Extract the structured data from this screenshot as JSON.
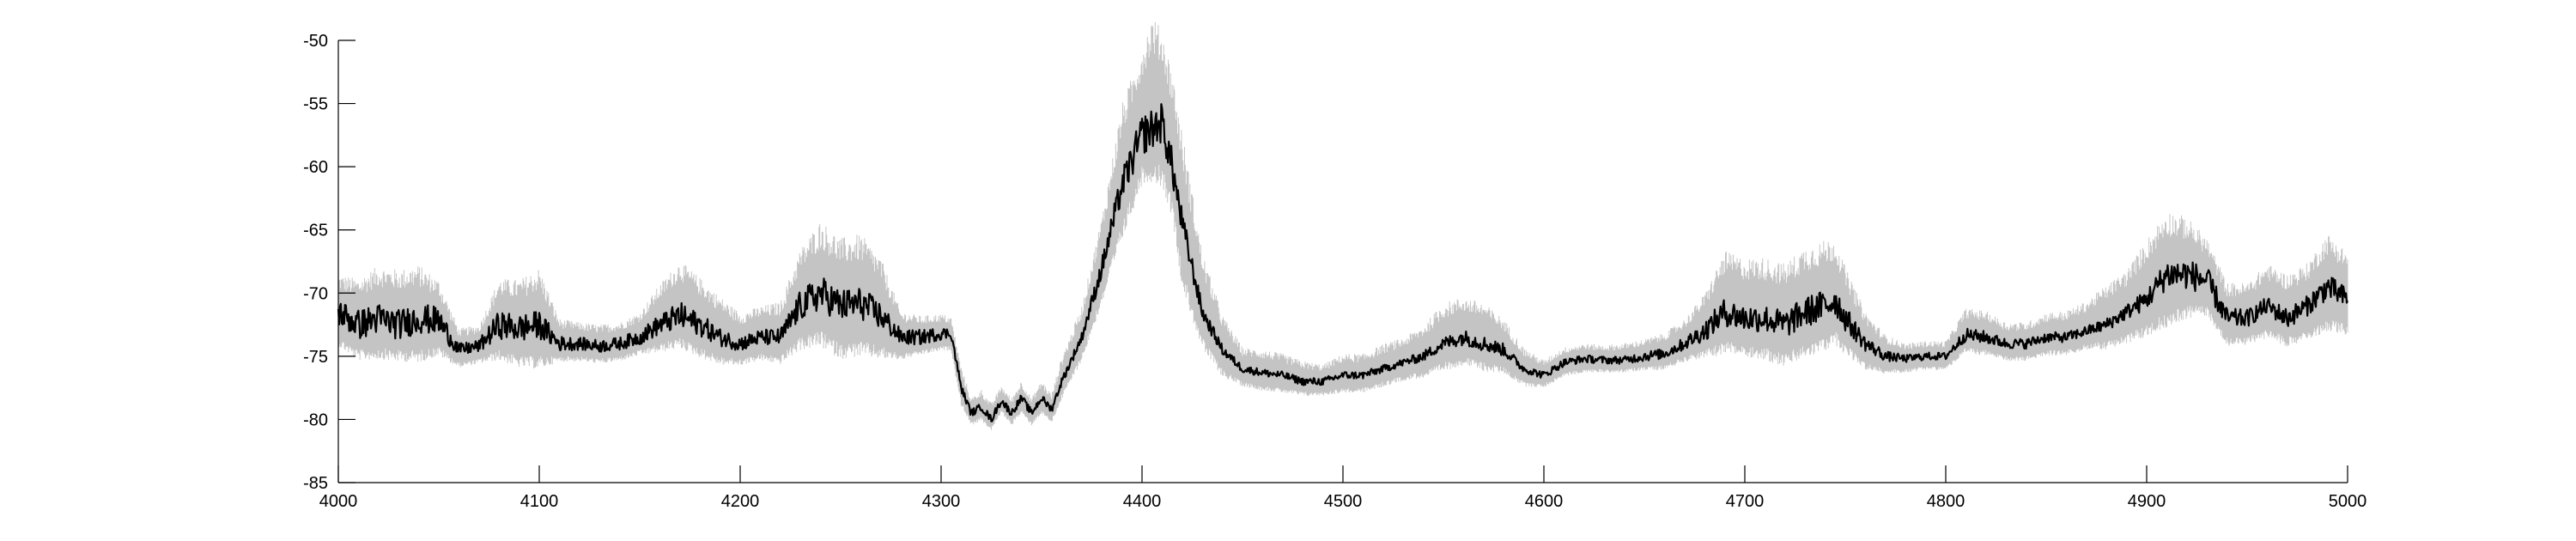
{
  "chart_data": {
    "type": "line",
    "title": "",
    "xlabel": "",
    "ylabel": "",
    "xlim": [
      4000,
      5000
    ],
    "ylim": [
      -85,
      -50
    ],
    "xticks": [
      "4000",
      "4100",
      "4200",
      "4300",
      "4400",
      "4500",
      "4600",
      "4700",
      "4800",
      "4900",
      "5000"
    ],
    "yticks": [
      "-50",
      "-55",
      "-60",
      "-65",
      "-70",
      "-75",
      "-80",
      "-85"
    ],
    "grid": false,
    "legend": "none",
    "colors": {
      "mean_line": "#000000",
      "band": "#c4c4c4",
      "axis": "#000000"
    },
    "series": [
      {
        "role": "mean",
        "x": [
          4000,
          4010,
          4020,
          4030,
          4040,
          4050,
          4060,
          4070,
          4080,
          4090,
          4100,
          4110,
          4120,
          4130,
          4140,
          4150,
          4160,
          4170,
          4180,
          4190,
          4200,
          4210,
          4220,
          4230,
          4240,
          4250,
          4260,
          4270,
          4280,
          4290,
          4300,
          4305,
          4310,
          4315,
          4320,
          4325,
          4330,
          4335,
          4340,
          4345,
          4350,
          4355,
          4360,
          4370,
          4380,
          4390,
          4400,
          4405,
          4410,
          4415,
          4420,
          4430,
          4440,
          4450,
          4460,
          4470,
          4480,
          4490,
          4500,
          4510,
          4520,
          4530,
          4540,
          4550,
          4560,
          4570,
          4580,
          4590,
          4600,
          4610,
          4620,
          4630,
          4640,
          4650,
          4660,
          4670,
          4680,
          4690,
          4700,
          4710,
          4720,
          4730,
          4740,
          4745,
          4750,
          4760,
          4770,
          4780,
          4790,
          4800,
          4810,
          4820,
          4830,
          4840,
          4850,
          4860,
          4870,
          4880,
          4890,
          4900,
          4910,
          4920,
          4930,
          4940,
          4950,
          4960,
          4970,
          4980,
          4990,
          5000
        ],
        "y": [
          -71.5,
          -72.5,
          -72,
          -72.5,
          -72,
          -72.2,
          -74.5,
          -74.2,
          -72.5,
          -72.8,
          -72.5,
          -74,
          -74,
          -74.2,
          -74,
          -73.5,
          -72.5,
          -71.8,
          -72.5,
          -73.5,
          -74,
          -73.5,
          -73.5,
          -71,
          -70,
          -71,
          -70.8,
          -71.8,
          -73.5,
          -73.5,
          -73.2,
          -73.2,
          -77.5,
          -79.5,
          -79,
          -80,
          -78.5,
          -79.5,
          -78.3,
          -79.5,
          -78.3,
          -79.2,
          -77,
          -73.5,
          -68,
          -61.5,
          -57.5,
          -57,
          -56.5,
          -60,
          -64.5,
          -71.5,
          -74.5,
          -76,
          -76.3,
          -76.5,
          -77,
          -77,
          -76.5,
          -76.5,
          -76,
          -75.5,
          -75,
          -74,
          -73.5,
          -74,
          -74.5,
          -76,
          -76.5,
          -75.5,
          -75.2,
          -75.3,
          -75.3,
          -75,
          -74.8,
          -74,
          -73,
          -71.5,
          -72,
          -72,
          -72.5,
          -71.5,
          -71,
          -70.5,
          -72,
          -74,
          -75,
          -75.2,
          -75,
          -75,
          -73.3,
          -73.5,
          -74,
          -74,
          -73.5,
          -73.5,
          -73,
          -72.5,
          -71.5,
          -70.5,
          -68.5,
          -68.5,
          -69,
          -72,
          -72,
          -71,
          -72,
          -71,
          -69.5,
          -70.5
        ],
        "noise": [
          1.1,
          1.2,
          1.2,
          1.2,
          1.2,
          1.1,
          0.5,
          0.5,
          1.1,
          1.1,
          1.1,
          0.6,
          0.5,
          0.5,
          0.5,
          0.6,
          0.8,
          1.1,
          0.9,
          0.7,
          0.6,
          0.6,
          0.7,
          1.2,
          1.4,
          1.3,
          1.3,
          1.1,
          0.6,
          0.6,
          0.5,
          0.4,
          0.3,
          0.3,
          0.3,
          0.3,
          0.3,
          0.3,
          0.3,
          0.3,
          0.3,
          0.3,
          0.3,
          0.4,
          0.8,
          1.2,
          1.6,
          1.6,
          1.6,
          1.4,
          1.1,
          0.6,
          0.4,
          0.3,
          0.3,
          0.3,
          0.3,
          0.3,
          0.3,
          0.3,
          0.3,
          0.3,
          0.4,
          0.5,
          0.6,
          0.6,
          0.5,
          0.3,
          0.3,
          0.3,
          0.3,
          0.3,
          0.3,
          0.4,
          0.4,
          0.5,
          0.8,
          1.1,
          1.1,
          1.1,
          1.1,
          1.2,
          1.3,
          1.3,
          1,
          0.6,
          0.4,
          0.3,
          0.3,
          0.3,
          0.5,
          0.5,
          0.4,
          0.4,
          0.4,
          0.4,
          0.4,
          0.5,
          0.6,
          0.8,
          1.2,
          1.2,
          1.1,
          0.8,
          0.7,
          0.7,
          0.8,
          0.8,
          1,
          0.9
        ]
      },
      {
        "role": "band",
        "x": [
          4000,
          4010,
          4020,
          4030,
          4040,
          4050,
          4060,
          4070,
          4080,
          4090,
          4100,
          4110,
          4120,
          4130,
          4140,
          4150,
          4160,
          4170,
          4180,
          4190,
          4200,
          4210,
          4220,
          4230,
          4240,
          4250,
          4260,
          4270,
          4280,
          4290,
          4300,
          4305,
          4310,
          4315,
          4320,
          4325,
          4330,
          4335,
          4340,
          4345,
          4350,
          4355,
          4360,
          4370,
          4380,
          4390,
          4400,
          4405,
          4410,
          4415,
          4420,
          4430,
          4440,
          4450,
          4460,
          4470,
          4480,
          4490,
          4500,
          4510,
          4520,
          4530,
          4540,
          4550,
          4560,
          4570,
          4580,
          4590,
          4600,
          4610,
          4620,
          4630,
          4640,
          4650,
          4660,
          4670,
          4680,
          4690,
          4700,
          4710,
          4720,
          4730,
          4740,
          4745,
          4750,
          4760,
          4770,
          4780,
          4790,
          4800,
          4810,
          4820,
          4830,
          4840,
          4850,
          4860,
          4870,
          4880,
          4890,
          4900,
          4910,
          4920,
          4930,
          4940,
          4950,
          4960,
          4970,
          4980,
          4990,
          5000
        ],
        "upper": [
          -69.8,
          -70.3,
          -69.5,
          -69.8,
          -69.5,
          -70.3,
          -73.5,
          -73.2,
          -70.3,
          -70.5,
          -69.8,
          -72.8,
          -73,
          -73.2,
          -73,
          -72.3,
          -70.5,
          -69,
          -70.2,
          -71.5,
          -72.5,
          -72,
          -71.8,
          -68.3,
          -66.5,
          -67.8,
          -67.5,
          -69,
          -72.3,
          -72.5,
          -72.3,
          -72.5,
          -76.5,
          -78.8,
          -78.2,
          -79.2,
          -77.8,
          -78.8,
          -77.5,
          -78.8,
          -77.5,
          -78.5,
          -75.8,
          -72,
          -65.5,
          -57.5,
          -53,
          -51,
          -52,
          -55,
          -60,
          -68.5,
          -72.8,
          -75,
          -75.2,
          -75.5,
          -76,
          -76.2,
          -75.5,
          -75.5,
          -74.8,
          -74.3,
          -73.5,
          -72,
          -71.5,
          -72,
          -73,
          -75,
          -75.8,
          -74.8,
          -74.5,
          -74.6,
          -74.5,
          -74.2,
          -73.8,
          -72.8,
          -71.2,
          -68.5,
          -69,
          -69,
          -69.5,
          -68.3,
          -67.8,
          -67.5,
          -69.5,
          -72.5,
          -74,
          -74.5,
          -74.3,
          -74.3,
          -72,
          -72.2,
          -73,
          -73,
          -72.3,
          -72.2,
          -71.5,
          -70.5,
          -69.5,
          -67.5,
          -65.5,
          -65.8,
          -67,
          -70.3,
          -70.3,
          -69,
          -69.8,
          -69,
          -67,
          -68.2
        ],
        "lower": [
          -73.5,
          -74.5,
          -74.3,
          -74.5,
          -74.5,
          -74.2,
          -75.5,
          -75.2,
          -74.5,
          -75,
          -75,
          -75,
          -75,
          -75.2,
          -75,
          -74.5,
          -74,
          -73.5,
          -74.3,
          -75,
          -75.2,
          -74.8,
          -75,
          -73.5,
          -73,
          -74,
          -73.8,
          -74.2,
          -74.8,
          -74.5,
          -74.2,
          -74.2,
          -78.5,
          -80.2,
          -79.8,
          -80.6,
          -79.2,
          -80.2,
          -79.2,
          -80.2,
          -79.2,
          -80,
          -78,
          -74.8,
          -70,
          -64.5,
          -60,
          -59.5,
          -60,
          -62.5,
          -68,
          -73.5,
          -76,
          -77,
          -77.3,
          -77.5,
          -77.8,
          -77.8,
          -77.5,
          -77.5,
          -77,
          -76.5,
          -76.2,
          -75.5,
          -75,
          -75.5,
          -75.8,
          -77,
          -77.2,
          -76.3,
          -76,
          -76,
          -76,
          -75.8,
          -75.7,
          -75,
          -74.5,
          -73.8,
          -74,
          -74.3,
          -74.8,
          -74,
          -73.5,
          -73,
          -74,
          -75.5,
          -76,
          -76,
          -75.8,
          -75.8,
          -74.3,
          -74.5,
          -75,
          -75,
          -74.5,
          -74.5,
          -74,
          -73.8,
          -73.3,
          -72.5,
          -71.5,
          -71,
          -71,
          -73.5,
          -73.5,
          -72.8,
          -73.5,
          -73,
          -72,
          -72.5
        ]
      }
    ]
  }
}
